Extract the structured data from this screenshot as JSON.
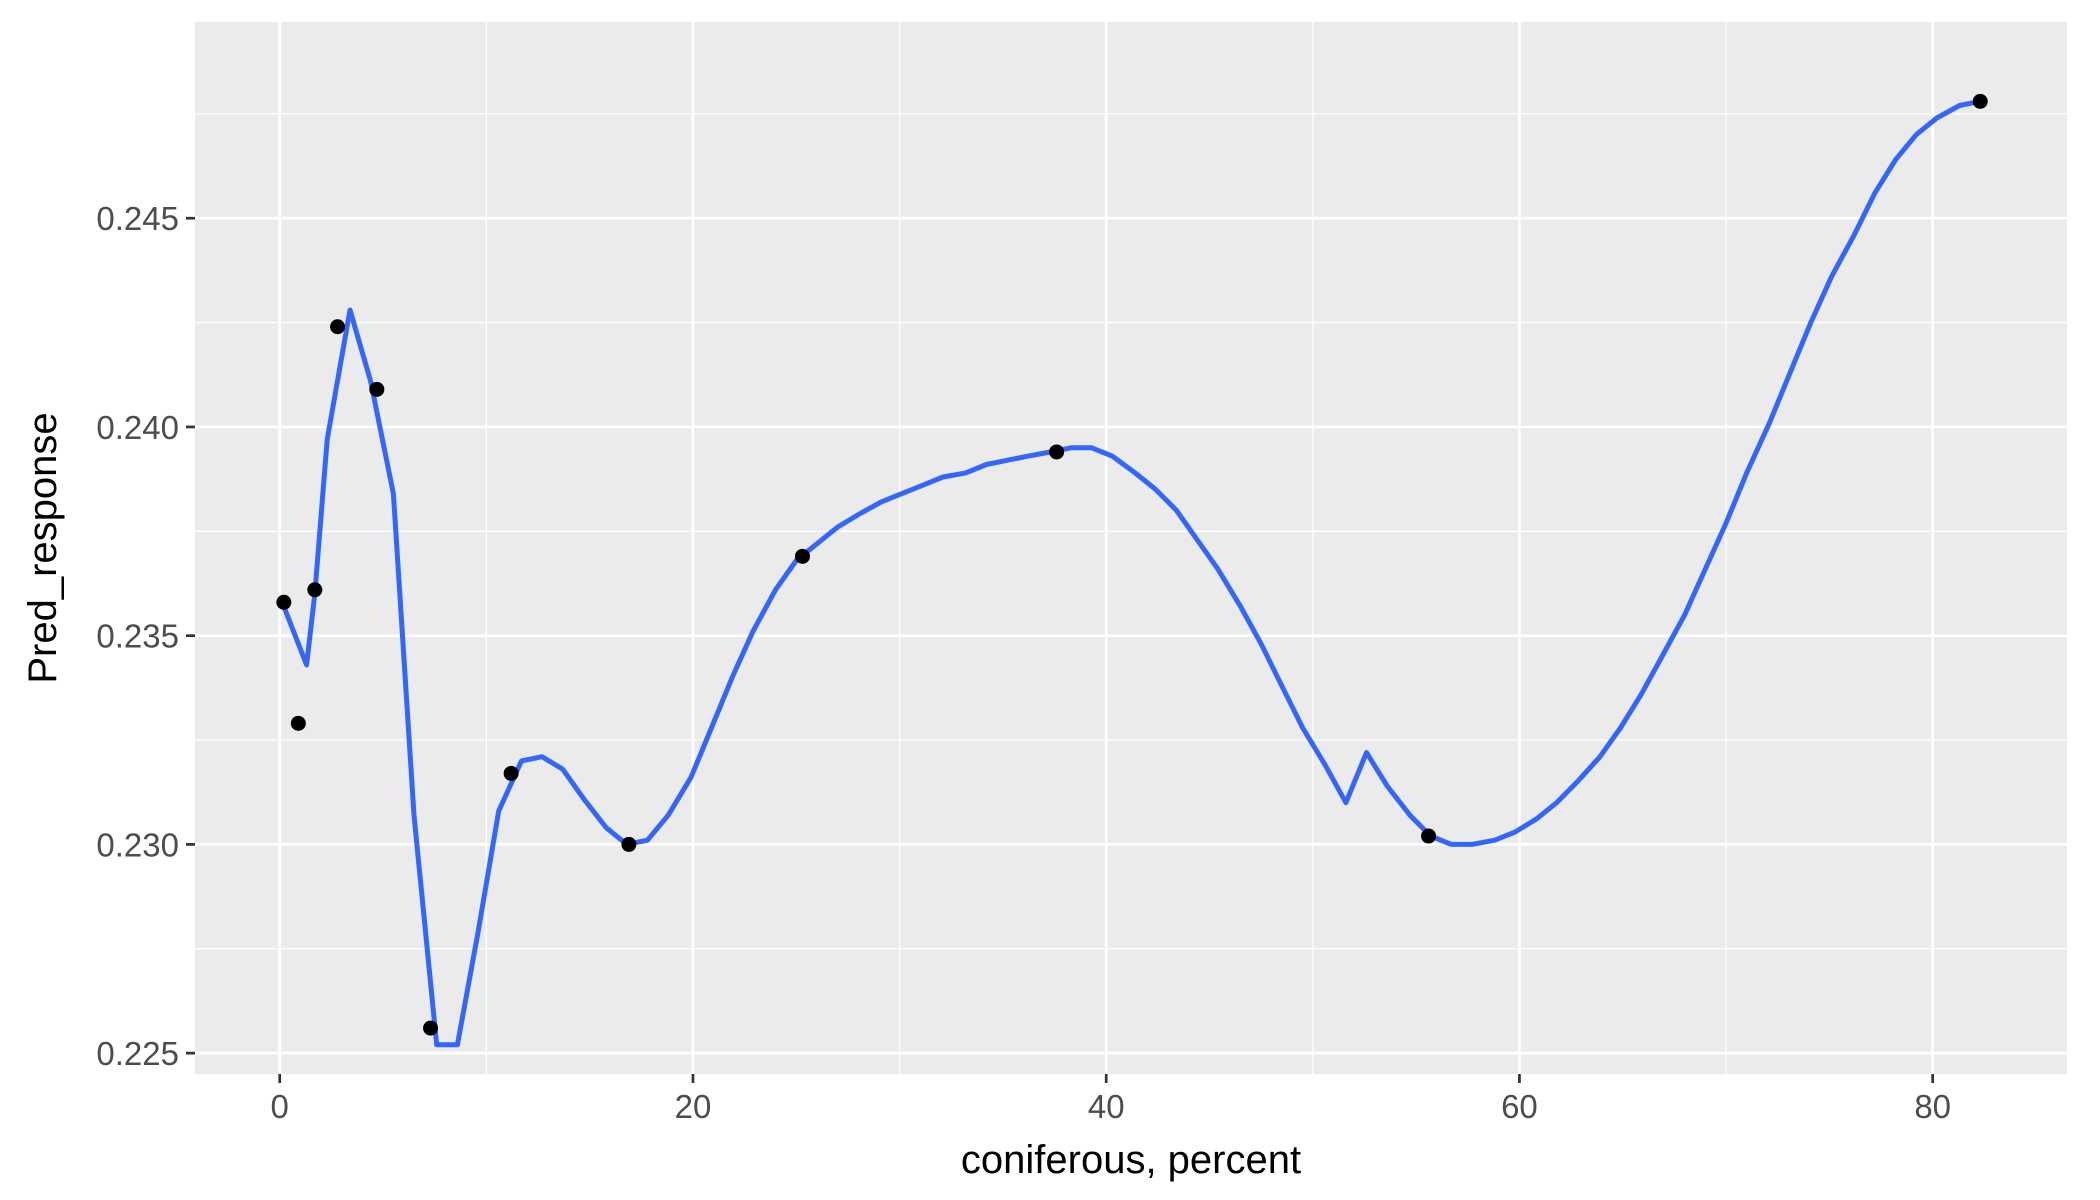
{
  "chart_data": {
    "type": "line",
    "title": "",
    "xlabel": "coniferous, percent",
    "ylabel": "Pred_response",
    "xlim": [
      -4.1,
      86.5
    ],
    "ylim": [
      0.2245,
      0.2497
    ],
    "x_ticks": [
      0,
      20,
      40,
      60,
      80
    ],
    "x_tick_labels": [
      "0",
      "20",
      "40",
      "60",
      "80"
    ],
    "y_ticks": [
      0.225,
      0.23,
      0.235,
      0.24,
      0.245
    ],
    "y_tick_labels": [
      "0.225",
      "0.230",
      "0.235",
      "0.240",
      "0.245"
    ],
    "grid": true,
    "legend": "none",
    "colors": {
      "panel": "#ebebeb",
      "grid": "#ffffff",
      "line": "#3366ff",
      "points": "#000000"
    },
    "points": {
      "x": [
        0.2,
        0.9,
        1.7,
        2.8,
        4.7,
        7.3,
        11.2,
        16.9,
        25.3,
        37.6,
        55.6,
        82.3
      ],
      "y": [
        0.2358,
        0.2329,
        0.2361,
        0.2424,
        0.2409,
        0.2256,
        0.2317,
        0.23,
        0.2369,
        0.2394,
        0.2302,
        0.2478
      ]
    },
    "series": [
      {
        "x": [
          0.2,
          1.3,
          1.7,
          2.3,
          3.4,
          4.4,
          5.5,
          6.5,
          7.6,
          8.6,
          9.6,
          10.6,
          11.7,
          12.7,
          13.7,
          14.7,
          15.8,
          16.8,
          17.8,
          18.8,
          19.9,
          20.9,
          21.9,
          22.9,
          24.0,
          25.0,
          26.0,
          27.0,
          28.0,
          29.1,
          30.1,
          31.1,
          32.1,
          33.2,
          34.2,
          35.2,
          36.2,
          37.3,
          38.3,
          39.3,
          40.3,
          41.4,
          42.4,
          43.4,
          44.4,
          45.4,
          46.5,
          47.5,
          48.5,
          49.5,
          50.6,
          51.6,
          52.6,
          53.6,
          54.7,
          55.7,
          56.7,
          57.7,
          58.8,
          59.8,
          60.8,
          61.8,
          62.8,
          63.9,
          64.9,
          65.9,
          66.9,
          68.0,
          69.0,
          70.0,
          71.0,
          72.1,
          73.1,
          74.1,
          75.1,
          76.2,
          77.2,
          78.2,
          79.2,
          80.2,
          81.3,
          82.3
        ],
        "y": [
          0.2357,
          0.2343,
          0.236,
          0.2397,
          0.2428,
          0.2411,
          0.2384,
          0.2307,
          0.2252,
          0.2252,
          0.2279,
          0.2308,
          0.232,
          0.2321,
          0.2318,
          0.2311,
          0.2304,
          0.23,
          0.2301,
          0.2307,
          0.2316,
          0.2328,
          0.234,
          0.2351,
          0.2361,
          0.2368,
          0.2372,
          0.2376,
          0.2379,
          0.2382,
          0.2384,
          0.2386,
          0.2388,
          0.2389,
          0.2391,
          0.2392,
          0.2393,
          0.2394,
          0.2395,
          0.2395,
          0.2393,
          0.2389,
          0.2385,
          0.238,
          0.2373,
          0.2366,
          0.2357,
          0.2348,
          0.2338,
          0.2328,
          0.2319,
          0.231,
          0.2322,
          0.2314,
          0.2307,
          0.2302,
          0.23,
          0.23,
          0.2301,
          0.2303,
          0.2306,
          0.231,
          0.2315,
          0.2321,
          0.2328,
          0.2336,
          0.2345,
          0.2355,
          0.2366,
          0.2377,
          0.2389,
          0.2401,
          0.2413,
          0.2425,
          0.2436,
          0.2446,
          0.2456,
          0.2464,
          0.247,
          0.2474,
          0.2477,
          0.2478
        ]
      }
    ]
  }
}
